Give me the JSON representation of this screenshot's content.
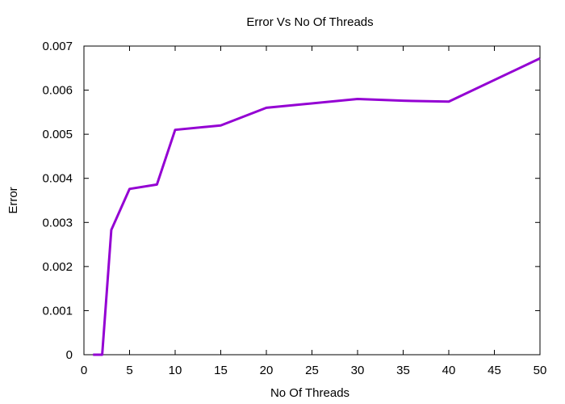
{
  "chart_data": {
    "type": "line",
    "title": "Error Vs No Of Threads",
    "xlabel": "No Of Threads",
    "ylabel": "Error",
    "xlim": [
      0,
      50
    ],
    "ylim": [
      0,
      0.007
    ],
    "xticks": [
      0,
      5,
      10,
      15,
      20,
      25,
      30,
      35,
      40,
      45,
      50
    ],
    "yticks": [
      0,
      0.001,
      0.002,
      0.003,
      0.004,
      0.005,
      0.006,
      0.007
    ],
    "ytick_labels": [
      "0",
      "0.001",
      "0.002",
      "0.003",
      "0.004",
      "0.005",
      "0.006",
      "0.007"
    ],
    "grid": false,
    "legend": "none",
    "series": [
      {
        "color": "#9400d3",
        "x": [
          1,
          2,
          3,
          5,
          8,
          10,
          15,
          20,
          30,
          35,
          40,
          50
        ],
        "y": [
          0,
          0,
          0.00283,
          0.00376,
          0.00386,
          0.0051,
          0.0052,
          0.0056,
          0.0058,
          0.00576,
          0.00574,
          0.00672
        ]
      }
    ]
  }
}
